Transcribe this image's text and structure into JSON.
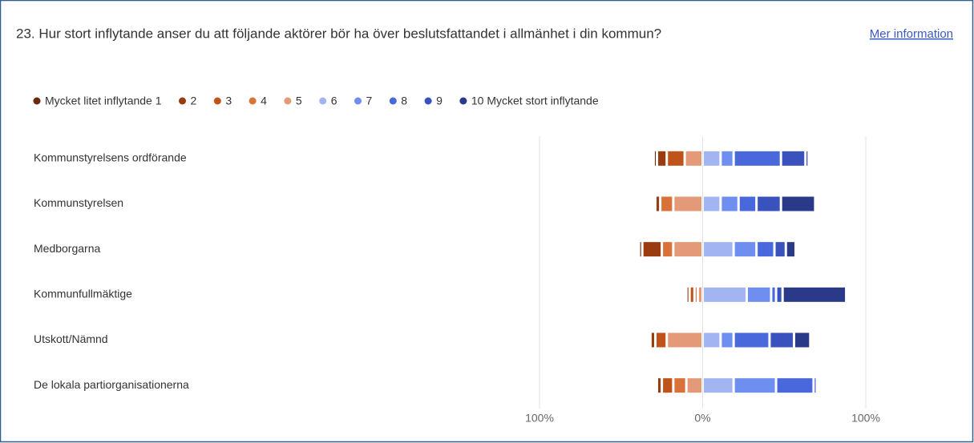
{
  "chart_data": {
    "type": "diverging_bar",
    "title": "23. Hur stort inflytande anser du att följande aktörer bör ha över beslutsfattandet i allmänhet i din kommun?",
    "link": "Mer information",
    "categories": [
      "Kommunstyrelsens ordförande",
      "Kommunstyrelsen",
      "Medborgarna",
      "Kommunfullmäktige",
      "Utskott/Nämnd",
      "De lokala partiorganisationerna"
    ],
    "series": [
      {
        "name": "Mycket litet inflytande 1",
        "color": "#6b2a0c",
        "side": "left",
        "values": [
          2,
          0,
          2,
          0,
          0,
          0
        ]
      },
      {
        "name": "2",
        "color": "#9a3c10",
        "side": "left",
        "values": [
          6,
          3,
          12,
          2,
          3,
          3
        ]
      },
      {
        "name": "3",
        "color": "#bf5319",
        "side": "left",
        "values": [
          11,
          0,
          0,
          3,
          7,
          7
        ]
      },
      {
        "name": "4",
        "color": "#d87238",
        "side": "left",
        "values": [
          0,
          8,
          7,
          2,
          0,
          8
        ]
      },
      {
        "name": "5",
        "color": "#e49a78",
        "side": "left",
        "values": [
          11,
          18,
          18,
          3,
          22,
          10
        ]
      },
      {
        "name": "6",
        "color": "#a3b4f2",
        "side": "right",
        "values": [
          11,
          11,
          19,
          27,
          11,
          19
        ]
      },
      {
        "name": "7",
        "color": "#6e8ef0",
        "side": "right",
        "values": [
          8,
          11,
          14,
          15,
          8,
          26
        ]
      },
      {
        "name": "8",
        "color": "#4868dc",
        "side": "right",
        "values": [
          29,
          11,
          11,
          3,
          22,
          23
        ]
      },
      {
        "name": "9",
        "color": "#3a52bd",
        "side": "right",
        "values": [
          15,
          15,
          7,
          4,
          15,
          2
        ]
      },
      {
        "name": "10 Mycket stort inflytande",
        "color": "#2a3a88",
        "side": "right",
        "values": [
          2,
          21,
          6,
          39,
          10,
          0
        ]
      }
    ],
    "xlim": [
      -100,
      100
    ],
    "xticks": [
      {
        "value": -100,
        "label": "100%"
      },
      {
        "value": 0,
        "label": "0%"
      },
      {
        "value": 100,
        "label": "100%"
      }
    ],
    "grid": true
  }
}
